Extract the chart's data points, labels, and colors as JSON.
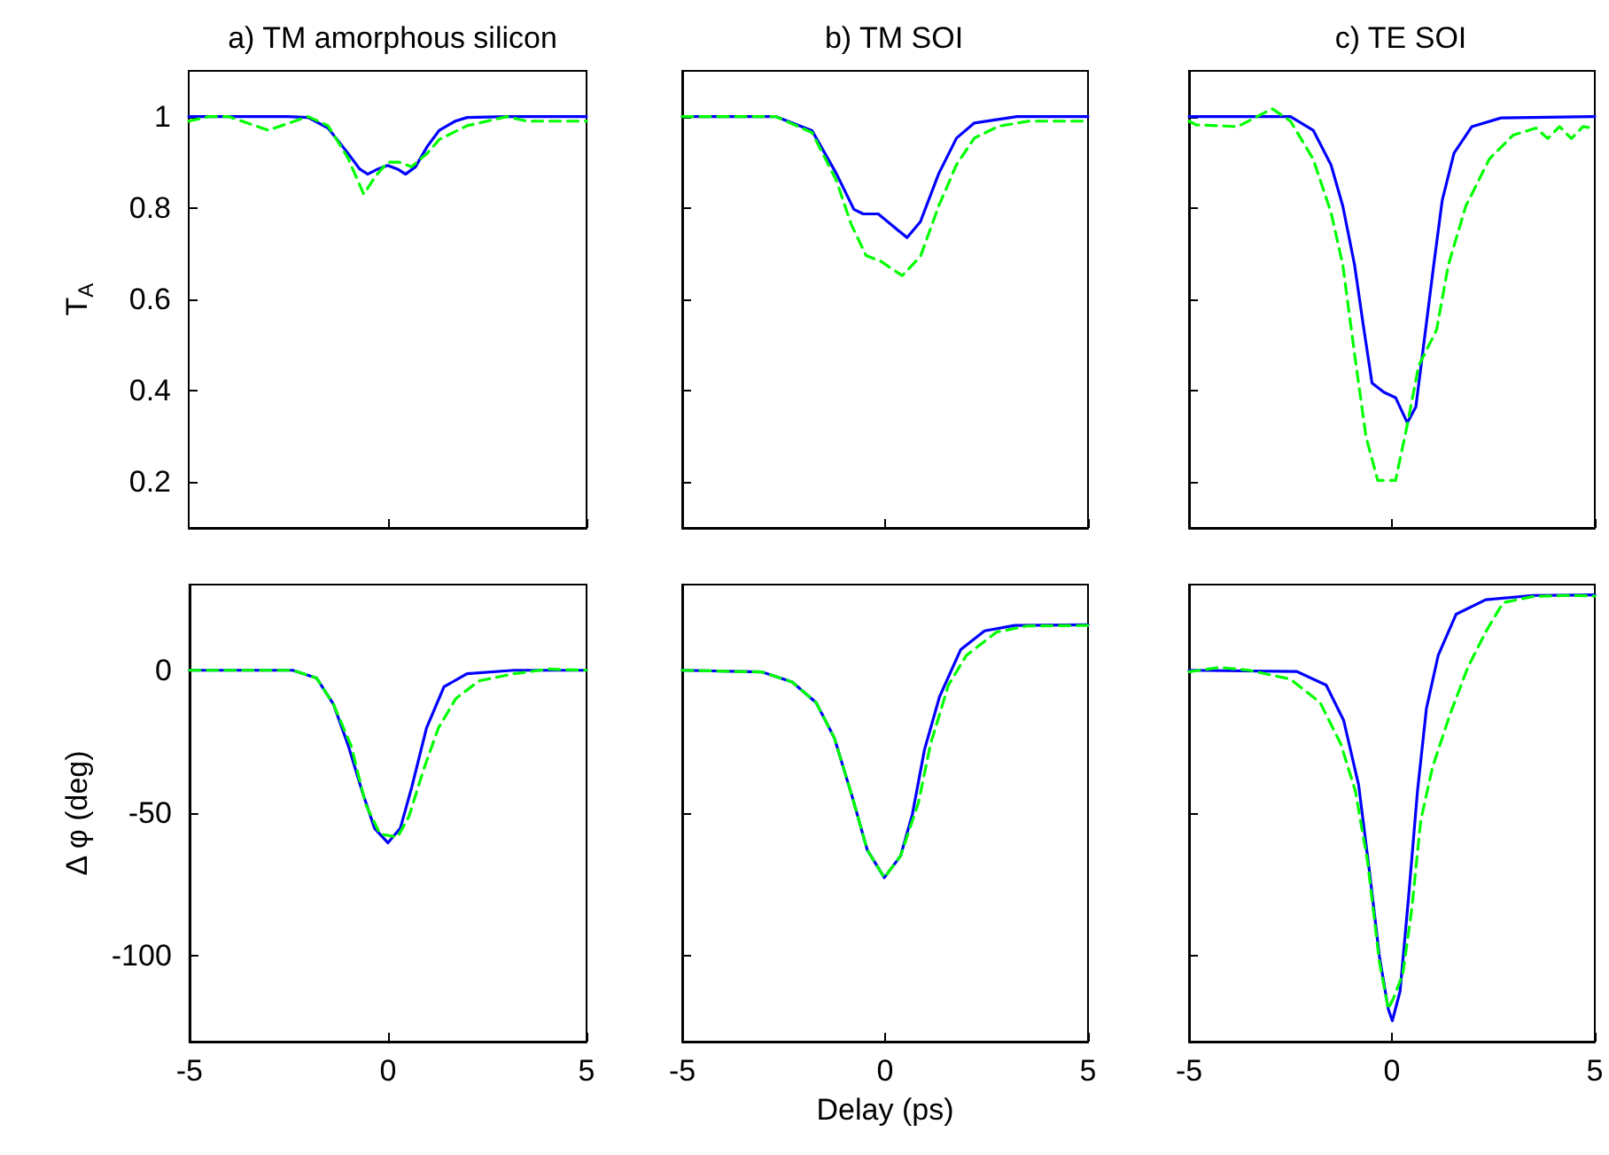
{
  "chart_data": [
    {
      "type": "line",
      "title": "a) TM amorphous silicon",
      "ylabel": "T$_{A}$",
      "xlim": [
        -5,
        5
      ],
      "xticks": [
        -5,
        0,
        5
      ],
      "ylim": [
        0.1,
        1.1
      ],
      "yticks": [
        0.2,
        0.4,
        0.6,
        0.8,
        1
      ],
      "tick_labels": "y",
      "marker": "none",
      "series": [
        {
          "color": "#0000ff",
          "line_style": "solid",
          "x": [
            -5,
            -2.5,
            -2,
            -1.5,
            -1,
            -0.7,
            -0.5,
            -0.25,
            0,
            0.25,
            0.45,
            0.7,
            1,
            1.3,
            1.7,
            2,
            3,
            5
          ],
          "values": [
            1,
            1,
            0.998,
            0.975,
            0.92,
            0.885,
            0.874,
            0.885,
            0.893,
            0.885,
            0.874,
            0.89,
            0.935,
            0.97,
            0.99,
            0.998,
            1,
            1
          ]
        },
        {
          "color": "#00ff00",
          "line_style": "dashed",
          "x": [
            -5,
            -4.5,
            -4,
            -3.5,
            -3,
            -2.5,
            -2,
            -1.5,
            -1,
            -0.6,
            -0.3,
            0,
            0.3,
            0.6,
            1,
            1.3,
            2,
            2.5,
            3,
            3.5,
            4,
            4.5,
            5
          ],
          "values": [
            0.99,
            1,
            1,
            0.985,
            0.97,
            0.985,
            1,
            0.98,
            0.91,
            0.83,
            0.87,
            0.9,
            0.9,
            0.89,
            0.92,
            0.95,
            0.98,
            0.99,
            1,
            0.99,
            0.99,
            0.99,
            0.99
          ]
        }
      ]
    },
    {
      "type": "line",
      "title": "b) TM SOI",
      "xlim": [
        -5,
        5
      ],
      "xticks": [
        -5,
        0,
        5
      ],
      "ylim": [
        0.1,
        1.1
      ],
      "yticks": [
        0.2,
        0.4,
        0.6,
        0.8,
        1
      ],
      "tick_labels": false,
      "marker": "none",
      "series": [
        {
          "color": "#0000ff",
          "line_style": "solid",
          "x": [
            -5,
            -2.7,
            -1.8,
            -1.2,
            -0.77,
            -0.54,
            -0.17,
            0.2,
            0.54,
            0.87,
            1.32,
            1.76,
            2.2,
            3.25,
            5
          ],
          "values": [
            1,
            1,
            0.969,
            0.875,
            0.797,
            0.787,
            0.787,
            0.76,
            0.735,
            0.77,
            0.875,
            0.953,
            0.986,
            1,
            1
          ]
        },
        {
          "color": "#00ff00",
          "line_style": "dashed",
          "x": [
            -5,
            -2.7,
            -1.8,
            -1.2,
            -0.84,
            -0.47,
            -0.1,
            0.42,
            0.87,
            1.32,
            1.76,
            2.2,
            2.8,
            3.54,
            5
          ],
          "values": [
            1,
            1,
            0.965,
            0.86,
            0.765,
            0.696,
            0.683,
            0.652,
            0.694,
            0.804,
            0.895,
            0.953,
            0.979,
            0.99,
            0.99
          ]
        }
      ]
    },
    {
      "type": "line",
      "title": "c) TE SOI",
      "xlim": [
        -5,
        5
      ],
      "xticks": [
        -5,
        0,
        5
      ],
      "ylim": [
        0.1,
        1.1
      ],
      "yticks": [
        0.2,
        0.4,
        0.6,
        0.8,
        1
      ],
      "tick_labels": false,
      "marker": "none",
      "series": [
        {
          "color": "#0000ff",
          "line_style": "solid",
          "x": [
            -5,
            -2.5,
            -1.94,
            -1.5,
            -1.21,
            -0.92,
            -0.71,
            -0.49,
            -0.2,
            0.09,
            0.38,
            0.59,
            0.81,
            1.03,
            1.24,
            1.53,
            1.97,
            2.69,
            5
          ],
          "values": [
            1,
            1,
            0.97,
            0.894,
            0.804,
            0.675,
            0.546,
            0.417,
            0.397,
            0.385,
            0.33,
            0.365,
            0.52,
            0.675,
            0.817,
            0.92,
            0.978,
            0.997,
            1
          ]
        },
        {
          "color": "#00ff00",
          "line_style": "dashed",
          "x": [
            -5,
            -4.83,
            -3.8,
            -2.95,
            -2.5,
            -1.94,
            -1.5,
            -1.21,
            -0.92,
            -0.64,
            -0.35,
            0.09,
            0.38,
            0.66,
            1.1,
            1.39,
            1.82,
            2.4,
            2.98,
            3.55,
            3.84,
            4.13,
            4.42,
            4.71,
            5
          ],
          "values": [
            0.99,
            0.982,
            0.978,
            1.017,
            0.99,
            0.907,
            0.79,
            0.675,
            0.48,
            0.3,
            0.204,
            0.204,
            0.326,
            0.455,
            0.533,
            0.675,
            0.804,
            0.907,
            0.959,
            0.975,
            0.952,
            0.978,
            0.952,
            0.978,
            0.974
          ]
        }
      ]
    },
    {
      "type": "line",
      "ylabel": "Δ φ (deg)",
      "xlim": [
        -5,
        5
      ],
      "xticks": [
        -5,
        0,
        5
      ],
      "ylim": [
        -130,
        30
      ],
      "yticks": [
        -100,
        -50,
        0
      ],
      "marker": "none",
      "series": [
        {
          "color": "#0000ff",
          "line_style": "solid",
          "x": [
            -5,
            -2.4,
            -1.8,
            -1.37,
            -1,
            -0.64,
            -0.34,
            0,
            0.31,
            0.6,
            0.97,
            1.41,
            1.99,
            3.17,
            5
          ],
          "values": [
            0,
            0,
            -2.7,
            -12,
            -26.4,
            -42.9,
            -55.3,
            -60.4,
            -55.3,
            -40.8,
            -20.2,
            -5.8,
            -1.2,
            0,
            0
          ]
        },
        {
          "color": "#00ff00",
          "line_style": "dashed",
          "x": [
            -5,
            -2.4,
            -1.8,
            -1.37,
            -0.93,
            -0.56,
            -0.2,
            0.24,
            0.53,
            0.9,
            1.27,
            1.71,
            2.29,
            3.17,
            4.05,
            5
          ],
          "values": [
            0,
            0,
            -2.7,
            -12,
            -26.4,
            -47,
            -57.3,
            -58.4,
            -51.1,
            -34.6,
            -20.2,
            -9.9,
            -3.7,
            -1.2,
            0.4,
            0
          ]
        }
      ]
    },
    {
      "type": "line",
      "xlabel": "Delay (ps)",
      "xlim": [
        -5,
        5
      ],
      "xticks": [
        -5,
        0,
        5
      ],
      "ylim": [
        -130,
        30
      ],
      "yticks": [
        -100,
        -50,
        0
      ],
      "tick_labels": "x",
      "marker": "none",
      "series": [
        {
          "color": "#0000ff",
          "line_style": "solid",
          "x": [
            -5,
            -3.03,
            -2.29,
            -1.7,
            -1.25,
            -0.81,
            -0.44,
            -0.02,
            0.38,
            0.67,
            0.97,
            1.34,
            1.86,
            2.45,
            3.19,
            5
          ],
          "values": [
            0,
            -0.6,
            -4.1,
            -11.3,
            -23.7,
            -44.3,
            -62.9,
            -72.6,
            -65,
            -50.5,
            -27.8,
            -9.3,
            7.2,
            13.8,
            15.7,
            15.9
          ]
        },
        {
          "color": "#00ff00",
          "line_style": "dashed",
          "x": [
            -5,
            -3.03,
            -2.29,
            -1.7,
            -1.25,
            -0.81,
            -0.44,
            -0.02,
            0.38,
            0.82,
            1.12,
            1.56,
            2,
            2.75,
            3.49,
            5
          ],
          "values": [
            0,
            -0.6,
            -4.1,
            -11.3,
            -23.7,
            -44.3,
            -62.9,
            -72.6,
            -65,
            -46.4,
            -25.8,
            -5.2,
            5.2,
            13.4,
            15.5,
            15.7
          ]
        }
      ]
    },
    {
      "type": "line",
      "xlim": [
        -5,
        5
      ],
      "xticks": [
        -5,
        0,
        5
      ],
      "ylim": [
        -130,
        30
      ],
      "yticks": [
        -100,
        -50,
        0
      ],
      "tick_labels": "x",
      "marker": "none",
      "series": [
        {
          "color": "#0000ff",
          "line_style": "solid",
          "x": [
            -5,
            -2.35,
            -1.62,
            -1.19,
            -0.82,
            -0.53,
            -0.31,
            -0.09,
            0.01,
            0.2,
            0.41,
            0.63,
            0.85,
            1.14,
            1.58,
            2.31,
            3.47,
            5
          ],
          "values": [
            0,
            -0.4,
            -5.2,
            -17.5,
            -40.2,
            -73.2,
            -100,
            -118.6,
            -122.7,
            -112.4,
            -79.4,
            -42.3,
            -13.4,
            5.2,
            19.6,
            24.7,
            26.2,
            26.4
          ]
        },
        {
          "color": "#00ff00",
          "line_style": "dashed",
          "x": [
            -5,
            -4.24,
            -3.52,
            -2.5,
            -1.77,
            -1.26,
            -0.9,
            -0.6,
            -0.31,
            -0.09,
            0.05,
            0.27,
            0.49,
            0.71,
            1,
            1.43,
            1.87,
            2.31,
            2.74,
            3.47,
            4.34,
            5
          ],
          "values": [
            -0.5,
            1,
            0,
            -3.1,
            -11.3,
            -25.8,
            -42.3,
            -67,
            -102,
            -118.6,
            -114.4,
            -106.2,
            -83.5,
            -52.6,
            -34,
            -15.5,
            1,
            13.4,
            23.7,
            25.8,
            26.2,
            26
          ]
        }
      ]
    }
  ]
}
